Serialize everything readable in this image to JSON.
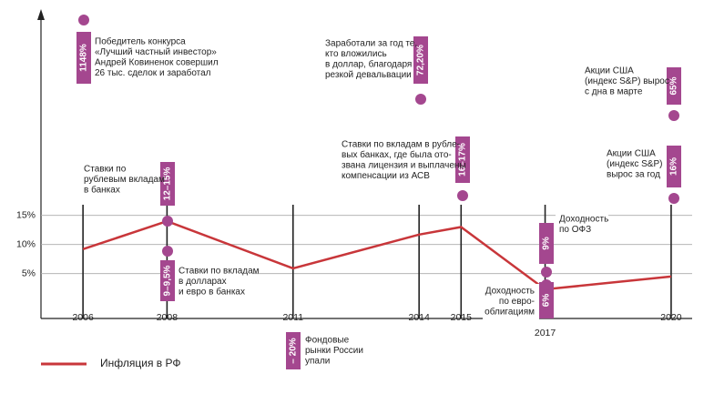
{
  "chart_data": {
    "type": "line",
    "x": [
      2006,
      2008,
      2011,
      2014,
      2015,
      2017,
      2020
    ],
    "series": [
      {
        "name": "Инфляция в РФ",
        "color": "#c8363a",
        "values": [
          9.2,
          14,
          5.9,
          11.7,
          13,
          2.3,
          4.5
        ]
      }
    ],
    "xlim": [
      2005,
      2020.5
    ],
    "xticks": [
      2006,
      2008,
      2011,
      2014,
      2015,
      2017,
      2020
    ],
    "ylim": [
      -2.7,
      50.1
    ],
    "yticks": [
      {
        "value": 5,
        "label": "5%"
      },
      {
        "value": 10,
        "label": "10%"
      },
      {
        "value": 15,
        "label": "15%"
      }
    ],
    "grid": true,
    "annotation_color": "#a4478f",
    "annotations": [
      {
        "label": "1148%",
        "lines": [
          "Победитель конкурса",
          "«Лучший частный инвестор»",
          "Андрей Ковиненок совершил",
          "26 тыс. сделок и заработал"
        ]
      },
      {
        "label": "12–15%",
        "lines": [
          "Ставки по",
          "рублевым вкладам",
          "в банках"
        ]
      },
      {
        "label": "9–9,5%",
        "lines": [
          "Ставки по вкладам",
          "в долларах",
          "и евро в банках"
        ]
      },
      {
        "label": "– 20%",
        "lines": [
          "Фондовые",
          "рынки России",
          "упали"
        ]
      },
      {
        "label": "72,20%",
        "lines": [
          "Заработали за год те,",
          "кто вложились",
          "в доллар, благодаря",
          "резкой девальвации"
        ]
      },
      {
        "label": "16–17%",
        "lines": [
          "Ставки по вкладам в рубле-",
          "вых банках, где была ото-",
          "звана лицензия и выплачены",
          "компенсации из АСВ"
        ]
      },
      {
        "label": "9%",
        "lines": [
          "Доходность",
          "по ОФЗ"
        ]
      },
      {
        "label": "6%",
        "lines": [
          "Доходность",
          "по евро-",
          "облигациям"
        ]
      },
      {
        "label": "65%",
        "lines": [
          "Акции США",
          "(индекс S&P) вырос",
          "с дна в марте"
        ]
      },
      {
        "label": "16%",
        "lines": [
          "Акции США",
          "(индекс S&P)",
          "вырос за год"
        ]
      }
    ]
  }
}
